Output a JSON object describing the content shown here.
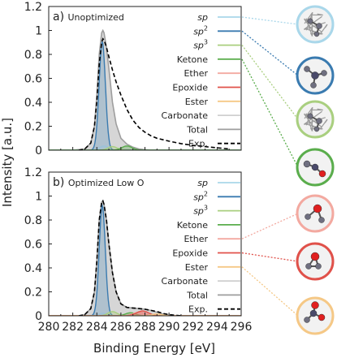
{
  "figure": {
    "ylabel": "Intensity [a.u.]",
    "xlabel": "Binding Energy [eV]"
  },
  "chart_data": [
    {
      "type": "area",
      "panel": "a) Unoptimized",
      "xlim": [
        280,
        296
      ],
      "ylim": [
        0,
        1.2
      ],
      "xticks": [
        280,
        282,
        284,
        286,
        288,
        290,
        292,
        294,
        296
      ],
      "yticks": [
        0,
        0.2,
        0.4,
        0.6,
        0.8,
        1.0,
        1.2
      ],
      "ytick_labels": [
        "0",
        "0.2",
        "0.4",
        "0.6",
        "0.8",
        "1",
        "1.2"
      ],
      "legend_position": "upper right",
      "peaks": [
        {
          "name": "sp",
          "color": "#a9d7ea",
          "center": 284.6,
          "height": 0.035,
          "width": 0.9
        },
        {
          "name": "sp2",
          "color": "#3a7bb0",
          "center": 284.45,
          "height": 0.905,
          "width": 0.62,
          "filled": true
        },
        {
          "name": "sp3",
          "color": "#a9cf7f",
          "center": 285.3,
          "height": 0.03,
          "width": 0.9
        },
        {
          "name": "Ketone",
          "color": "#5aad4c",
          "center": 286.5,
          "height": 0.035,
          "width": 1.0
        },
        {
          "name": "Ether",
          "color": "#f3a9a0",
          "center": 286.0,
          "height": 0.0,
          "width": 1.0
        },
        {
          "name": "Epoxide",
          "color": "#e0514a",
          "center": 286.5,
          "height": 0.0,
          "width": 1.0
        },
        {
          "name": "Ester",
          "color": "#f5c886",
          "center": 288.5,
          "height": 0.0,
          "width": 1.0
        },
        {
          "name": "Carbonate",
          "color": "#cfcfcf",
          "center": 289.5,
          "height": 0.0,
          "width": 1.0
        }
      ],
      "total": {
        "name": "Total",
        "color": "#9e9e9e",
        "x": [
          280,
          282,
          283,
          283.5,
          283.8,
          284.0,
          284.2,
          284.4,
          284.5,
          284.6,
          284.8,
          285.0,
          285.3,
          285.6,
          286.0,
          286.5,
          287.0,
          287.5,
          288.0,
          288.5,
          289,
          290,
          296
        ],
        "y": [
          0,
          0,
          0.01,
          0.06,
          0.2,
          0.46,
          0.8,
          0.98,
          1.0,
          0.98,
          0.86,
          0.68,
          0.4,
          0.22,
          0.1,
          0.05,
          0.025,
          0.01,
          0.005,
          0.0,
          0,
          0,
          0
        ]
      },
      "experimental": {
        "name": "Exp.",
        "color": "#000000",
        "x": [
          282.5,
          283.0,
          283.5,
          283.8,
          284.0,
          284.2,
          284.4,
          284.5,
          284.6,
          284.8,
          285.0,
          285.3,
          285.6,
          286.0,
          286.5,
          287.0,
          287.5,
          288.0,
          288.5,
          289.0,
          290.0,
          291.0,
          292.0,
          293.0,
          294.0,
          295.0
        ],
        "y": [
          0.0,
          0.01,
          0.06,
          0.2,
          0.42,
          0.72,
          0.9,
          0.93,
          0.92,
          0.86,
          0.78,
          0.67,
          0.57,
          0.46,
          0.34,
          0.25,
          0.19,
          0.15,
          0.12,
          0.1,
          0.075,
          0.055,
          0.04,
          0.03,
          0.02,
          0.01
        ]
      }
    },
    {
      "type": "area",
      "panel": "b) Optimized Low O",
      "xlim": [
        280,
        296
      ],
      "ylim": [
        0,
        1.2
      ],
      "xticks": [
        280,
        282,
        284,
        286,
        288,
        290,
        292,
        294,
        296
      ],
      "yticks": [
        0,
        0.2,
        0.4,
        0.6,
        0.8,
        1.0,
        1.2
      ],
      "ytick_labels": [
        "0",
        "0.2",
        "0.4",
        "0.6",
        "0.8",
        "1",
        "1.2"
      ],
      "legend_position": "upper right",
      "peaks": [
        {
          "name": "sp",
          "color": "#a9d7ea",
          "center": 284.5,
          "height": 0.02,
          "width": 0.9
        },
        {
          "name": "sp2",
          "color": "#3a7bb0",
          "center": 284.45,
          "height": 0.92,
          "width": 0.6,
          "filled": true
        },
        {
          "name": "sp3",
          "color": "#a9cf7f",
          "center": 285.3,
          "height": 0.035,
          "width": 0.9
        },
        {
          "name": "Ketone",
          "color": "#5aad4c",
          "center": 286.8,
          "height": 0.025,
          "width": 1.0
        },
        {
          "name": "Ether",
          "color": "#f3a9a0",
          "center": 287.5,
          "height": 0.03,
          "width": 1.1
        },
        {
          "name": "Epoxide",
          "color": "#e0514a",
          "center": 287.8,
          "height": 0.04,
          "width": 1.2
        },
        {
          "name": "Ester",
          "color": "#f5c886",
          "center": 289.0,
          "height": 0.015,
          "width": 1.0
        },
        {
          "name": "Carbonate",
          "color": "#cfcfcf",
          "center": 289.5,
          "height": 0.0,
          "width": 1.0
        }
      ],
      "total": {
        "name": "Total",
        "color": "#9e9e9e",
        "x": [
          280,
          282.5,
          283.0,
          283.5,
          283.8,
          284.0,
          284.2,
          284.4,
          284.5,
          284.6,
          284.8,
          285.0,
          285.3,
          285.6,
          286.0,
          286.5,
          287.0,
          287.5,
          288.0,
          288.5,
          289.0,
          289.5,
          290.0,
          291.0,
          296
        ],
        "y": [
          0,
          0,
          0.01,
          0.06,
          0.2,
          0.46,
          0.8,
          0.95,
          0.96,
          0.93,
          0.8,
          0.6,
          0.36,
          0.2,
          0.1,
          0.07,
          0.065,
          0.06,
          0.055,
          0.045,
          0.03,
          0.015,
          0.005,
          0.0,
          0
        ]
      },
      "experimental": {
        "name": "Exp.",
        "color": "#000000",
        "x": [
          282.5,
          283.0,
          283.5,
          283.8,
          284.0,
          284.2,
          284.4,
          284.5,
          284.6,
          284.8,
          285.0,
          285.3,
          285.6,
          286.0,
          286.5,
          287.0,
          287.5,
          288.0,
          288.5,
          289.0,
          289.5,
          290.0,
          290.5,
          291.0
        ],
        "y": [
          0.0,
          0.01,
          0.06,
          0.2,
          0.46,
          0.8,
          0.95,
          0.96,
          0.93,
          0.8,
          0.6,
          0.36,
          0.2,
          0.1,
          0.07,
          0.065,
          0.06,
          0.055,
          0.045,
          0.035,
          0.02,
          0.01,
          0.005,
          0.0
        ]
      }
    }
  ],
  "legend_items": [
    {
      "key": "sp",
      "base": "sp",
      "sup": "",
      "color": "#a9d7ea",
      "dash": false
    },
    {
      "key": "sp2",
      "base": "sp",
      "sup": "2",
      "color": "#3a7bb0",
      "dash": false
    },
    {
      "key": "sp3",
      "base": "sp",
      "sup": "3",
      "color": "#a9cf7f",
      "dash": false
    },
    {
      "key": "Ketone",
      "base": "Ketone",
      "sup": "",
      "color": "#5aad4c",
      "dash": false
    },
    {
      "key": "Ether",
      "base": "Ether",
      "sup": "",
      "color": "#f3a9a0",
      "dash": false
    },
    {
      "key": "Epoxide",
      "base": "Epoxide",
      "sup": "",
      "color": "#e0514a",
      "dash": false
    },
    {
      "key": "Ester",
      "base": "Ester",
      "sup": "",
      "color": "#f5c886",
      "dash": false
    },
    {
      "key": "Carbonate",
      "base": "Carbonate",
      "sup": "",
      "color": "#cfcfcf",
      "dash": false
    },
    {
      "key": "Total",
      "base": "Total",
      "sup": "",
      "color": "#9e9e9e",
      "dash": false
    },
    {
      "key": "Exp",
      "base": "Exp.",
      "sup": "",
      "color": "#000000",
      "dash": true
    }
  ],
  "inset_icons": [
    {
      "name": "sp-structure-icon",
      "ring": "#a9d7ea",
      "motif": "network",
      "links": [
        0
      ]
    },
    {
      "name": "sp2-structure-icon",
      "ring": "#3a7bb0",
      "motif": "trigonal",
      "links": [
        1
      ]
    },
    {
      "name": "sp3-structure-icon",
      "ring": "#a9cf7f",
      "motif": "network",
      "links": [
        2
      ]
    },
    {
      "name": "ketone-structure-icon",
      "ring": "#5aad4c",
      "motif": "ketone",
      "links": [
        3
      ]
    },
    {
      "name": "ether-structure-icon",
      "ring": "#f3a9a0",
      "motif": "ether",
      "links": [
        4
      ]
    },
    {
      "name": "epoxide-structure-icon",
      "ring": "#e0514a",
      "motif": "epoxide",
      "links": [
        5
      ]
    },
    {
      "name": "ester-structure-icon",
      "ring": "#f5c886",
      "motif": "ester",
      "links": [
        6
      ]
    }
  ]
}
